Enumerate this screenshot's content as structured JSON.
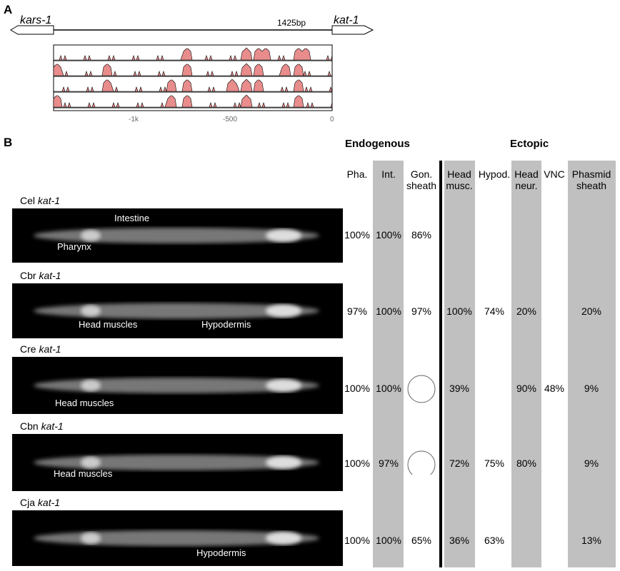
{
  "panel_a": {
    "label": "A",
    "left_gene": "kars-1",
    "right_gene": "kat-1",
    "distance": "1425bp",
    "axis_ticks": [
      "-1k",
      "-500",
      "0"
    ]
  },
  "panel_b": {
    "label": "B",
    "groups": [
      "Endogenous",
      "Ectopic"
    ],
    "columns": [
      "Pha.",
      "Int.",
      "Gon. sheath",
      "Head musc.",
      "Hypod.",
      "Head neur.",
      "VNC",
      "Phasmid sheath"
    ],
    "rows": [
      {
        "species": "Cel",
        "gene": "kat-1",
        "annotations": [
          "Intestine",
          "Pharynx"
        ],
        "values": [
          "100%",
          "100%",
          "86%",
          null,
          null,
          null,
          null,
          null
        ]
      },
      {
        "species": "Cbr",
        "gene": "kat-1",
        "annotations": [
          "Head muscles",
          "Hypodermis"
        ],
        "values": [
          "97%",
          "100%",
          "97%",
          "100%",
          "74%",
          "20%",
          null,
          "20%"
        ]
      },
      {
        "species": "Cre",
        "gene": "kat-1",
        "annotations": [
          "Head muscles"
        ],
        "values": [
          "100%",
          "100%",
          null,
          "39%",
          null,
          "90%",
          "48%",
          "9%"
        ]
      },
      {
        "species": "Cbn",
        "gene": "kat-1",
        "annotations": [
          "Head muscles"
        ],
        "values": [
          "100%",
          "97%",
          null,
          "72%",
          "75%",
          "80%",
          null,
          "9%"
        ]
      },
      {
        "species": "Cja",
        "gene": "kat-1",
        "annotations": [
          "Hypodermis"
        ],
        "values": [
          "100%",
          "100%",
          "65%",
          "36%",
          "63%",
          null,
          null,
          "13%"
        ]
      }
    ]
  }
}
